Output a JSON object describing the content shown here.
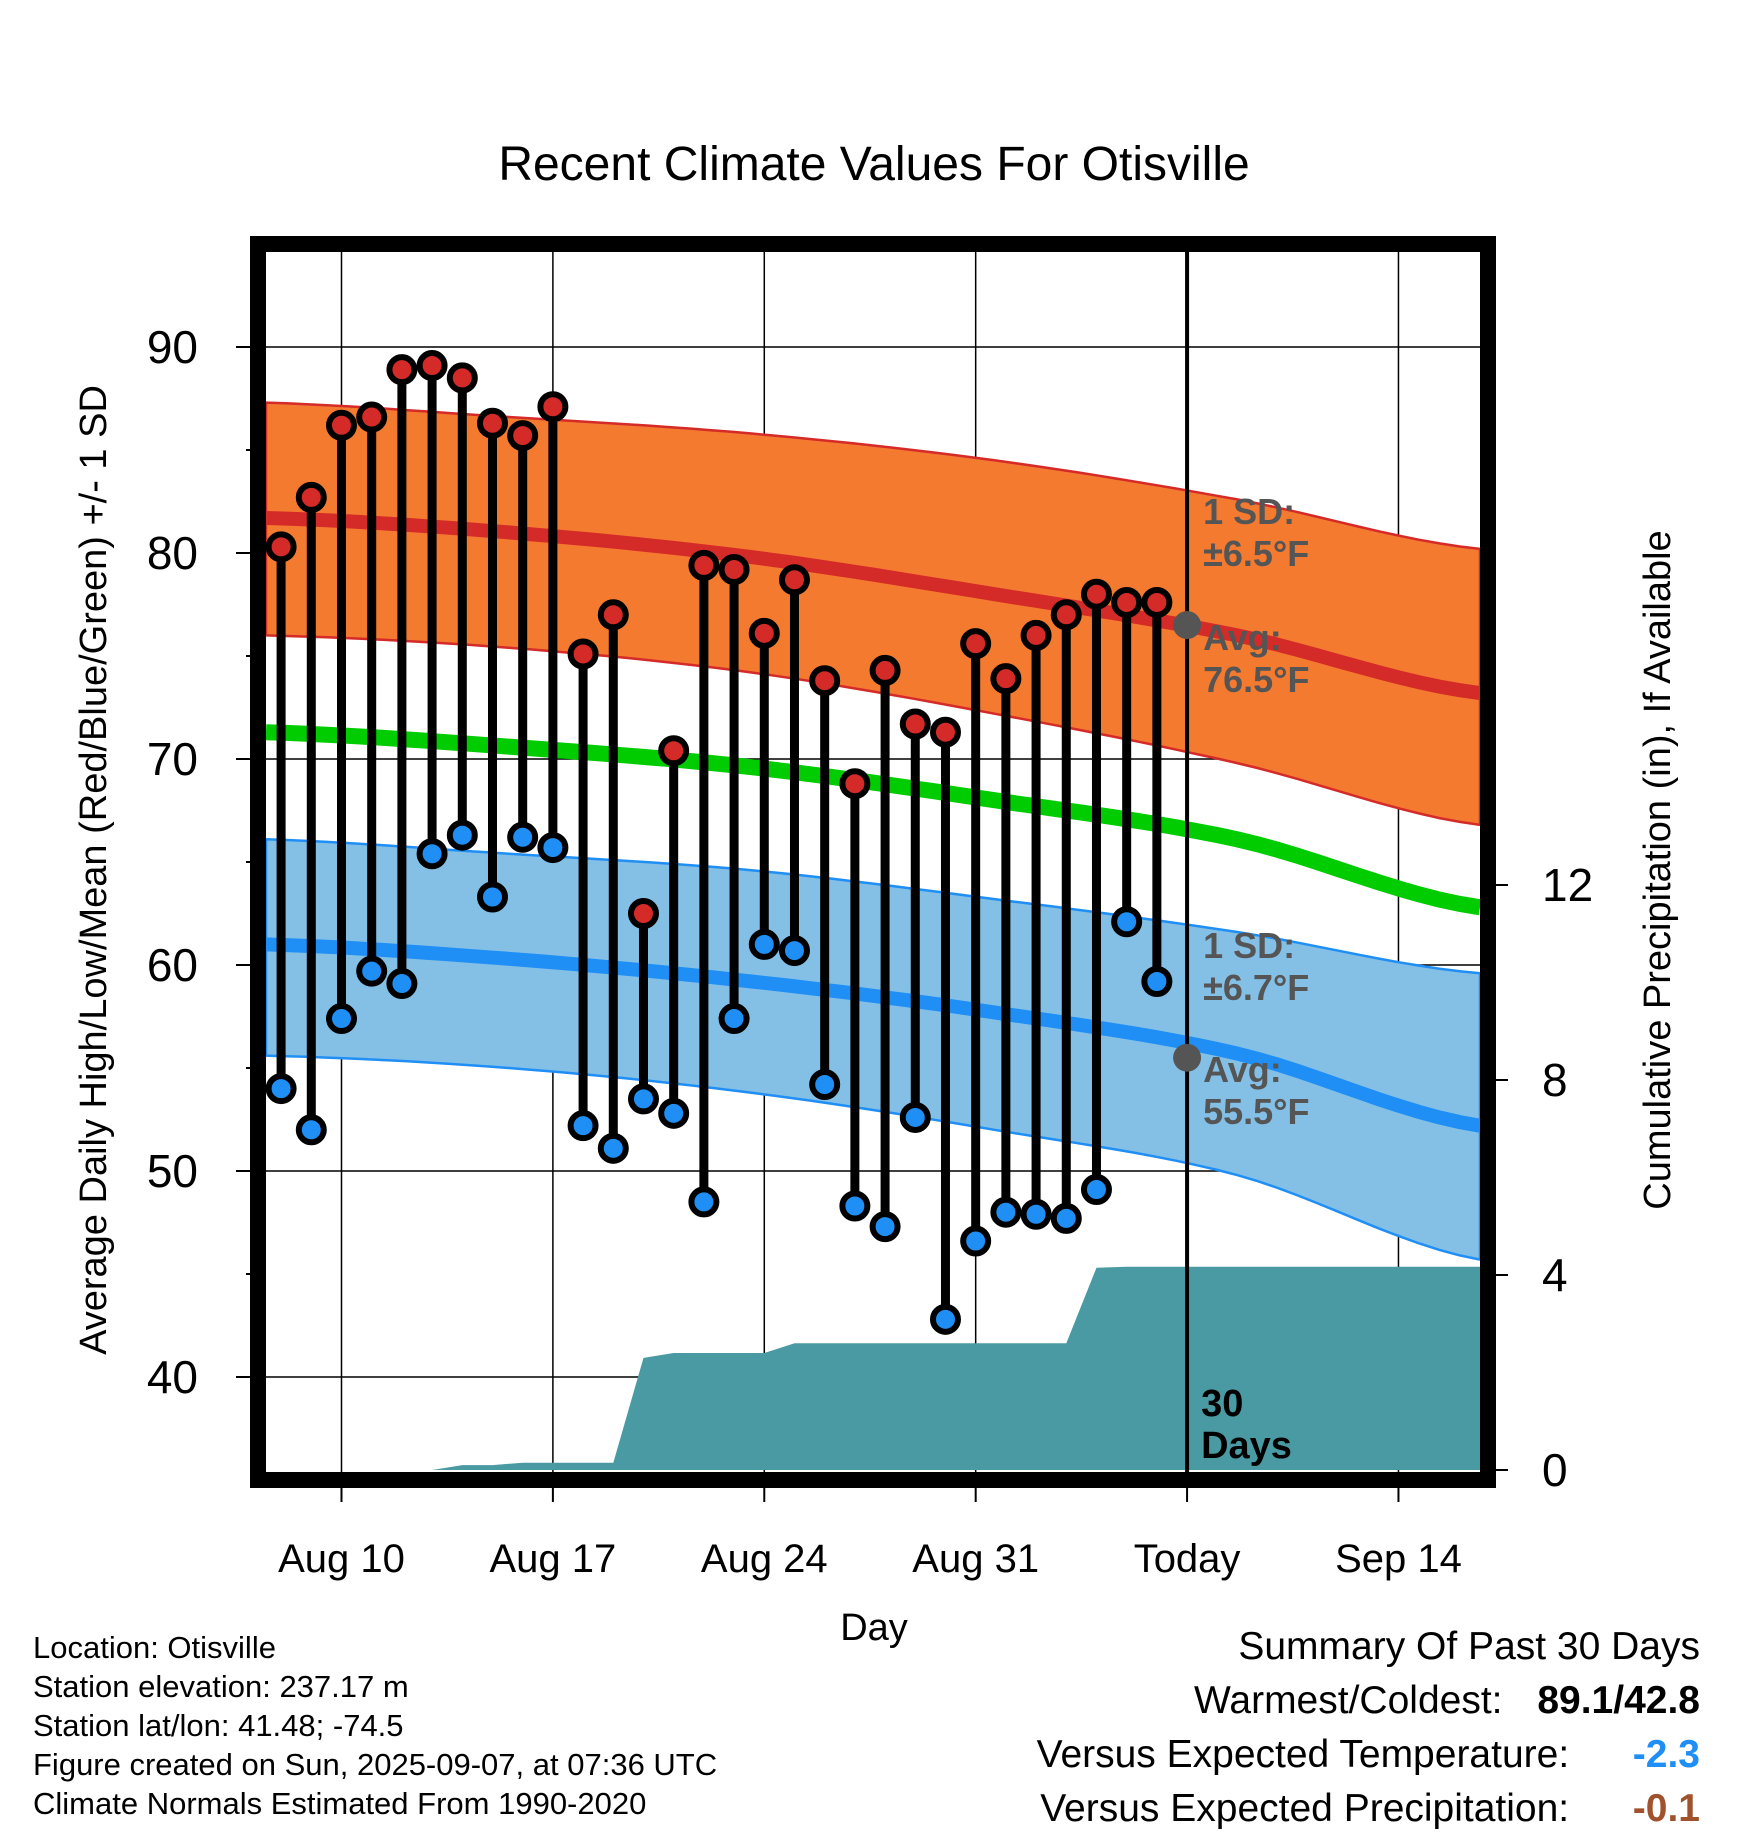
{
  "chart_data": {
    "type": "line",
    "title": "Recent Climate Values For Otisville",
    "xlabel": "Day",
    "ylabel": "Average Daily High/Low/Mean (Red/Blue/Green) +/- 1 SD",
    "y2label": "Cumulative Precipitation (in), If Available",
    "ylim": [
      35,
      95
    ],
    "y2lim": [
      0,
      25
    ],
    "y_ticks": [
      "40",
      "50",
      "60",
      "70",
      "80",
      "90"
    ],
    "y2_ticks": [
      "0",
      "4",
      "8",
      "12"
    ],
    "x_ticks": [
      "Aug 10",
      "Aug 17",
      "Aug 24",
      "Aug 31",
      "Today",
      "Sep 14"
    ],
    "x_tick_days": [
      10,
      17,
      24,
      31,
      38,
      45
    ],
    "xlim": [
      7.5,
      47.7
    ],
    "today_day": 38,
    "days": [
      8,
      9,
      10,
      11,
      12,
      13,
      14,
      15,
      16,
      17,
      18,
      19,
      20,
      21,
      22,
      23,
      24,
      25,
      26,
      27,
      28,
      29,
      30,
      31,
      32,
      33,
      34,
      35,
      36,
      37
    ],
    "highs": [
      80.3,
      82.7,
      86.2,
      86.6,
      88.9,
      89.1,
      88.5,
      86.3,
      85.7,
      87.1,
      75.1,
      77.0,
      62.5,
      70.4,
      79.4,
      79.2,
      76.1,
      78.7,
      73.8,
      68.8,
      74.3,
      71.7,
      71.3,
      75.6,
      73.9,
      76.0,
      77.0,
      78.0,
      77.6,
      77.6
    ],
    "lows": [
      54.0,
      52.0,
      57.4,
      59.7,
      59.1,
      65.4,
      66.3,
      63.3,
      66.2,
      65.7,
      52.2,
      51.1,
      53.5,
      52.8,
      48.5,
      57.4,
      61.0,
      60.7,
      54.2,
      48.3,
      47.3,
      52.6,
      42.8,
      46.6,
      48.0,
      47.9,
      47.7,
      49.1,
      62.1,
      59.2
    ],
    "normal_high": {
      "start_day": 7.5,
      "end_day": 47.7,
      "mean": [
        81.7,
        81.0,
        79.8,
        78.0,
        76.0,
        73.2
      ],
      "upper": [
        87.3,
        86.6,
        85.8,
        84.5,
        82.6,
        80.2
      ],
      "lower": [
        76.0,
        75.4,
        74.2,
        72.2,
        69.8,
        66.8
      ]
    },
    "normal_mean": {
      "start_day": 7.5,
      "end_day": 47.7,
      "values": [
        71.3,
        70.6,
        69.6,
        68.0,
        66.1,
        62.8
      ]
    },
    "normal_low": {
      "start_day": 7.5,
      "end_day": 47.7,
      "mean": [
        61.0,
        60.3,
        59.2,
        57.7,
        55.7,
        52.2
      ],
      "upper": [
        66.1,
        65.4,
        64.6,
        63.2,
        61.6,
        59.6
      ],
      "lower": [
        55.6,
        55.0,
        53.8,
        52.0,
        49.8,
        45.7
      ]
    },
    "precip_cumulative": {
      "days": [
        8,
        11,
        12,
        13,
        14,
        15,
        16,
        17,
        18,
        19,
        20,
        21,
        22,
        23,
        24,
        25,
        26,
        27,
        28,
        29,
        30,
        31,
        32,
        33,
        34,
        35,
        36,
        37,
        38,
        47.7
      ],
      "values": [
        0,
        0,
        0,
        0,
        0.1,
        0.1,
        0.15,
        0.15,
        0.15,
        0.15,
        2.3,
        2.4,
        2.4,
        2.4,
        2.4,
        2.6,
        2.6,
        2.6,
        2.6,
        2.6,
        2.6,
        2.6,
        2.6,
        2.6,
        2.6,
        4.15,
        4.17,
        4.17,
        4.17,
        4.17
      ]
    },
    "annotations": {
      "high_sd_label": "1 SD:",
      "high_sd_value": "±6.5°F",
      "high_avg_label": "Avg:",
      "high_avg_value": "76.5°F",
      "high_avg_today": 76.5,
      "low_sd_label": "1 SD:",
      "low_sd_value": "±6.7°F",
      "low_avg_label": "Avg:",
      "low_avg_value": "55.5°F",
      "low_avg_today": 55.5,
      "window_label_1": "30",
      "window_label_2": "Days"
    },
    "colors": {
      "high_band": "#f47a30",
      "high_line": "#d42a28",
      "low_band": "#84c0e6",
      "low_line": "#1f8ff5",
      "mean_line": "#00cc00",
      "precip": "#4a9aa3",
      "high_dot": "#d42a28",
      "low_dot": "#1f8ff5",
      "annotation": "#555555",
      "temp_anomaly": "#1f8ff5",
      "precip_anomaly": "#a0522d"
    }
  },
  "info": {
    "location": "Location: Otisville",
    "elevation": "Station elevation: 237.17 m",
    "latlon": "Station lat/lon: 41.48; -74.5",
    "created": "Figure created on Sun, 2025-09-07, at 07:36 UTC",
    "normals": "Climate Normals Estimated From 1990-2020"
  },
  "summary": {
    "title": "Summary Of Past 30 Days",
    "warmest_coldest_label": "Warmest/Coldest:",
    "warmest_coldest_value": "89.1/42.8",
    "temp_label": "Versus Expected Temperature:",
    "temp_value": "-2.3",
    "precip_label": "Versus Expected Precipitation:",
    "precip_value": "-0.1"
  }
}
